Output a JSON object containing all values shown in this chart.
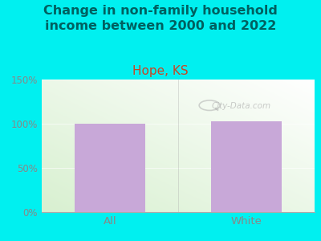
{
  "title": "Change in non-family household\nincome between 2000 and 2022",
  "subtitle": "Hope, KS",
  "categories": [
    "All",
    "White"
  ],
  "values": [
    100,
    103
  ],
  "bar_color": "#c8a8d8",
  "background_color": "#00f0f0",
  "title_color": "#006060",
  "subtitle_color": "#cc4422",
  "tick_label_color": "#888888",
  "ylim": [
    0,
    150
  ],
  "yticks": [
    0,
    50,
    100,
    150
  ],
  "ytick_labels": [
    "0%",
    "50%",
    "100%",
    "150%"
  ],
  "watermark": "City-Data.com",
  "title_fontsize": 11.5,
  "subtitle_fontsize": 11
}
